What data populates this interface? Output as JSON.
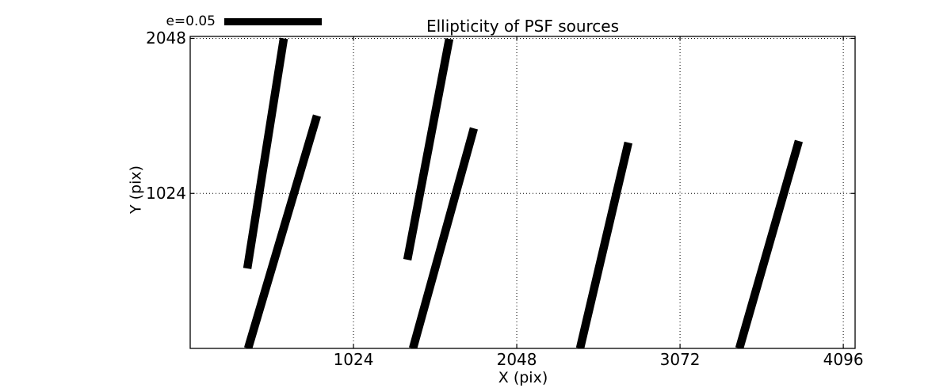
{
  "chart_data": {
    "type": "line",
    "subtype": "psf-ellipticity-whisker-segments",
    "title": "Ellipticity of PSF sources",
    "xlabel": "X (pix)",
    "ylabel": "Y (pix)",
    "xlim": [
      0,
      4170
    ],
    "ylim": [
      0,
      2048
    ],
    "xticks": [
      1024,
      2048,
      3072,
      4096
    ],
    "yticks": [
      1024,
      2048
    ],
    "grid": {
      "on": true,
      "style": "dotted",
      "color": "#000000"
    },
    "legend": {
      "label": "e=0.05",
      "swatch": "thick-black-bar",
      "location": "upper-left-outside"
    },
    "series_color": "#000000",
    "background_color": "#ffffff",
    "segments": [
      {
        "x1": 587,
        "y1": 2048,
        "x2": 358,
        "y2": 528
      },
      {
        "x1": 795,
        "y1": 1538,
        "x2": 363,
        "y2": 0
      },
      {
        "x1": 1625,
        "y1": 2045,
        "x2": 1362,
        "y2": 586
      },
      {
        "x1": 1779,
        "y1": 1454,
        "x2": 1397,
        "y2": 0
      },
      {
        "x1": 2748,
        "y1": 1360,
        "x2": 2445,
        "y2": 0
      },
      {
        "x1": 3817,
        "y1": 1370,
        "x2": 3444,
        "y2": 0
      }
    ]
  }
}
